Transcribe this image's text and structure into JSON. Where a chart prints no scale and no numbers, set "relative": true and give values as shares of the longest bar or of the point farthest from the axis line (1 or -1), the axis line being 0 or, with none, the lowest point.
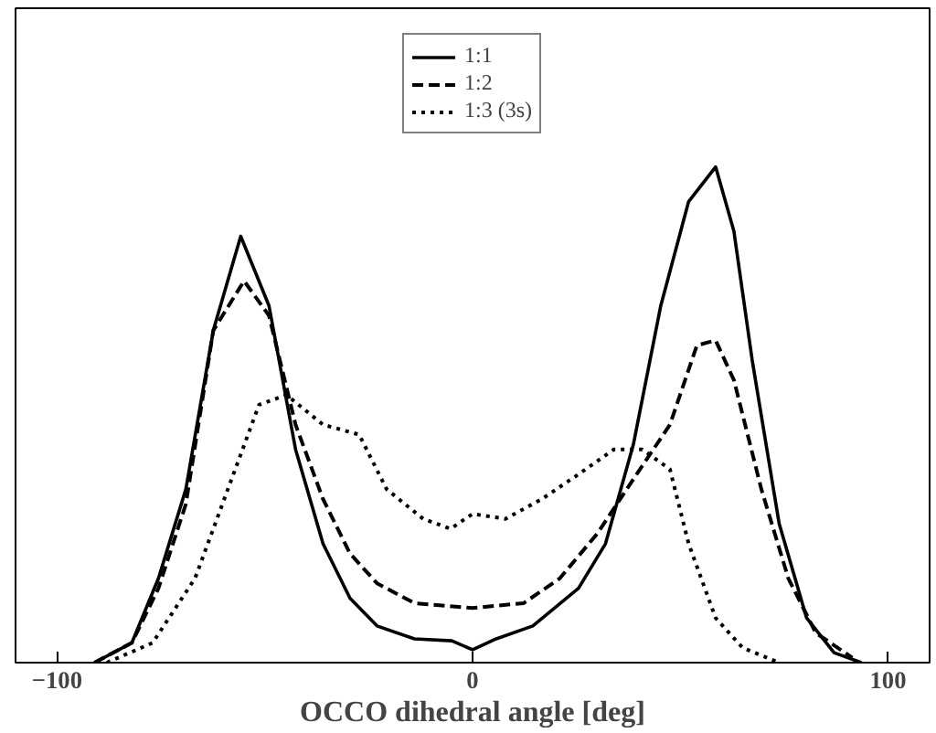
{
  "chart_data": {
    "type": "line",
    "xlabel": "OCCO dihedral angle [deg]",
    "xlim": [
      -110,
      110
    ],
    "xticks": [
      -100,
      0,
      100
    ],
    "relative": true,
    "grid": false,
    "legend": "top",
    "marker": "none",
    "series": [
      {
        "name": "1:1",
        "color": "#000000",
        "line_style": "solid",
        "x": [
          -91,
          -82,
          -75.6,
          -69,
          -62.4,
          -55.8,
          -49,
          -42.6,
          -36,
          -29.5,
          -23,
          -14,
          -5,
          0,
          5.7,
          14.5,
          25.5,
          32,
          38.7,
          45.3,
          52,
          58.5,
          62.9,
          67.3,
          73.8,
          80.4,
          87,
          93.6
        ],
        "values": [
          0,
          0.04,
          0.17,
          0.35,
          0.67,
          0.86,
          0.72,
          0.43,
          0.24,
          0.13,
          0.074,
          0.048,
          0.044,
          0.026,
          0.048,
          0.074,
          0.15,
          0.24,
          0.44,
          0.72,
          0.93,
          1.0,
          0.87,
          0.61,
          0.28,
          0.09,
          0.02,
          0
        ]
      },
      {
        "name": "1:2",
        "color": "#000000",
        "line_style": "dashed",
        "x": [
          -91,
          -82,
          -75.6,
          -69,
          -62.4,
          -55,
          -49,
          -42.6,
          -36,
          -29.5,
          -23,
          -14,
          0,
          12.3,
          21,
          30,
          38.7,
          47.5,
          54,
          58.5,
          62.9,
          69.5,
          76,
          82.6,
          91.4
        ],
        "values": [
          0,
          0.04,
          0.15,
          0.32,
          0.67,
          0.77,
          0.7,
          0.48,
          0.33,
          0.22,
          0.16,
          0.12,
          0.11,
          0.12,
          0.17,
          0.26,
          0.37,
          0.48,
          0.64,
          0.65,
          0.57,
          0.35,
          0.17,
          0.06,
          0.01
        ]
      },
      {
        "name": "1:3 (3s)",
        "color": "#000000",
        "line_style": "dotted",
        "x": [
          -88,
          -77,
          -66.8,
          -58,
          -51.4,
          -44.8,
          -36,
          -27.3,
          -20.7,
          -11.9,
          -5.3,
          0,
          7.9,
          16.7,
          25.5,
          34,
          40.9,
          47.5,
          52,
          58.5,
          65,
          73.8
        ],
        "values": [
          0,
          0.04,
          0.17,
          0.37,
          0.52,
          0.54,
          0.48,
          0.46,
          0.35,
          0.29,
          0.27,
          0.3,
          0.29,
          0.33,
          0.38,
          0.43,
          0.43,
          0.39,
          0.24,
          0.09,
          0.03,
          0
        ]
      }
    ]
  }
}
